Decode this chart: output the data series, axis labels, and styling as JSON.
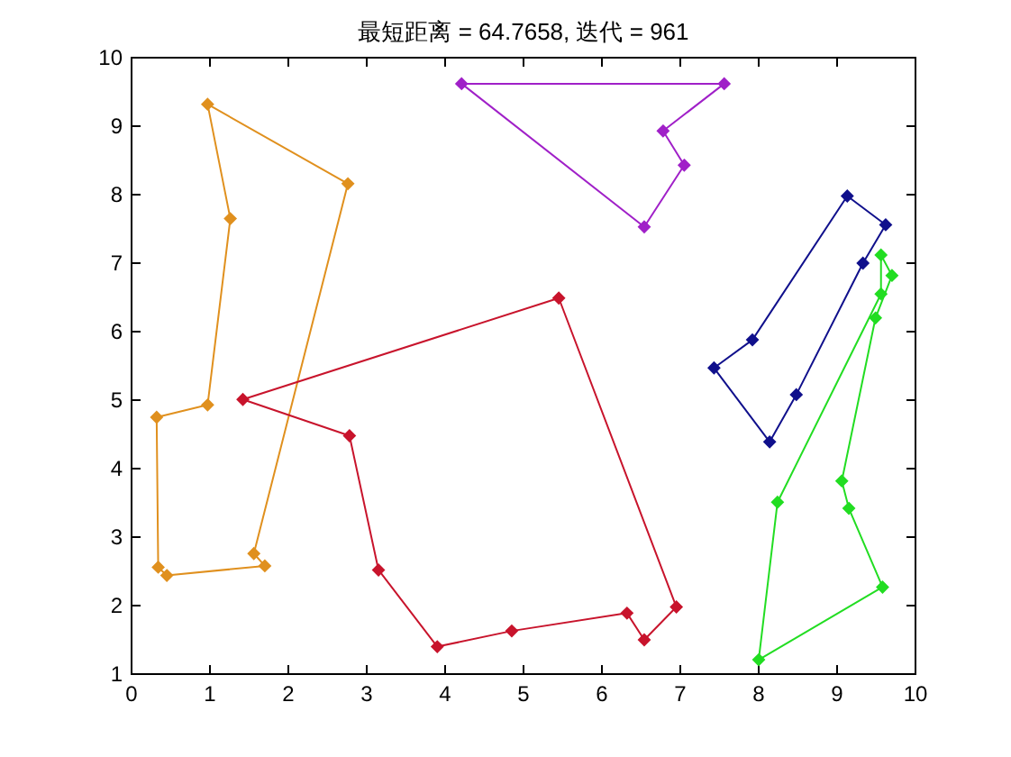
{
  "chart_data": {
    "type": "line",
    "title": "最短距离 = 64.7658, 迭代 = 961",
    "xlim": [
      0,
      10
    ],
    "ylim": [
      1,
      10
    ],
    "xticks": [
      0,
      1,
      2,
      3,
      4,
      5,
      6,
      7,
      8,
      9,
      10
    ],
    "yticks": [
      1,
      2,
      3,
      4,
      5,
      6,
      7,
      8,
      9,
      10
    ],
    "grid": false,
    "marker": "diamond",
    "line_style": "solid",
    "series": [
      {
        "color": "#e0901e",
        "x": [
          0.97,
          1.26,
          0.97,
          0.32,
          0.34,
          0.45,
          1.7,
          1.56,
          2.76
        ],
        "values": [
          9.32,
          7.65,
          4.93,
          4.75,
          2.56,
          2.44,
          2.58,
          2.76,
          8.16
        ]
      },
      {
        "color": "#e0901e",
        "marker": "none",
        "x": [
          2.76,
          0.97
        ],
        "values": [
          8.16,
          9.32
        ]
      },
      {
        "color": "#c8142c",
        "x": [
          1.42,
          2.78,
          3.15,
          3.9,
          4.85,
          6.32,
          6.54,
          6.95,
          5.45
        ],
        "values": [
          5.01,
          4.48,
          2.52,
          1.4,
          1.63,
          1.89,
          1.5,
          1.98,
          6.49
        ]
      },
      {
        "color": "#c8142c",
        "marker": "none",
        "x": [
          5.45,
          1.42
        ],
        "values": [
          6.49,
          5.01
        ]
      },
      {
        "color": "#a020c8",
        "x": [
          4.21,
          7.56,
          6.78,
          7.05,
          6.54
        ],
        "values": [
          9.62,
          9.62,
          8.93,
          8.43,
          7.53
        ]
      },
      {
        "color": "#a020c8",
        "marker": "none",
        "x": [
          6.54,
          4.21
        ],
        "values": [
          7.53,
          9.62
        ]
      },
      {
        "color": "#10108c",
        "x": [
          7.43,
          7.92,
          9.13,
          9.62,
          9.33,
          8.48,
          8.14
        ],
        "values": [
          5.47,
          5.88,
          7.98,
          7.56,
          7.0,
          5.08,
          4.39
        ]
      },
      {
        "color": "#10108c",
        "marker": "none",
        "x": [
          8.14,
          7.43
        ],
        "values": [
          4.39,
          5.47
        ]
      },
      {
        "color": "#22dd22",
        "x": [
          8.24,
          9.56,
          9.56,
          9.7,
          9.49,
          9.06,
          9.15,
          9.58,
          8.0
        ],
        "values": [
          3.51,
          6.55,
          7.12,
          6.82,
          6.2,
          3.82,
          3.42,
          2.27,
          1.21
        ]
      },
      {
        "color": "#22dd22",
        "marker": "none",
        "x": [
          8.0,
          8.24
        ],
        "values": [
          1.21,
          3.51
        ]
      }
    ]
  }
}
